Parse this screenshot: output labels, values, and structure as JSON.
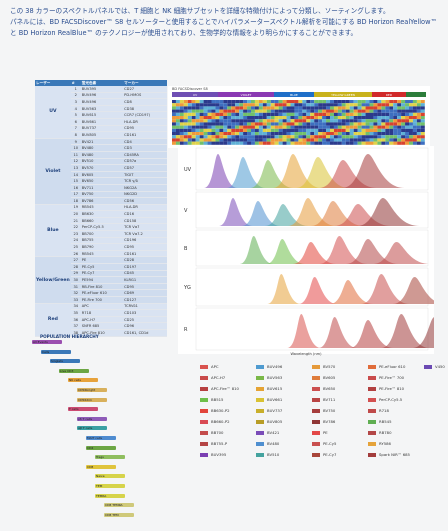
{
  "intro": {
    "line1": "この 38 カラーのスペクトルパネルでは、T 細胞と NK 細胞サブセットを詳細な特徴付けによって分類し、ソーティングします。",
    "line2": "パネルには、BD FACSDiscover™ S8 セルソーターと使用することでハイパラメータースペクトル解析を可能にする BD Horizon RealYellow™ と BD Horizon RealBlue™ のテクノロジーが使用されており、生物学的な情報をより明らかにすることができます。"
  },
  "table": {
    "headers": [
      "レーザー",
      "#",
      "蛍光色素",
      "マーカー"
    ],
    "groups": [
      {
        "laser": "UV",
        "color": "#d9e3f2",
        "rows": [
          [
            "1",
            "BUV395",
            "CD27"
          ],
          [
            "2",
            "BUV496",
            "PD-HMOS"
          ],
          [
            "3",
            "BUV496",
            "CD8"
          ],
          [
            "4",
            "BUV563",
            "CD38"
          ],
          [
            "5",
            "BUV615",
            "CCR7 (CD197)"
          ],
          [
            "6",
            "BUV661",
            "HLA-DR"
          ],
          [
            "7",
            "BUV737",
            "CD95"
          ],
          [
            "8",
            "BUV805",
            "CD161"
          ]
        ]
      },
      {
        "laser": "Violet",
        "color": "#cfdcee",
        "rows": [
          [
            "9",
            "BV421",
            "CD4"
          ],
          [
            "10",
            "BV480",
            "CD3"
          ],
          [
            "11",
            "BV480",
            "CD45RA"
          ],
          [
            "12",
            "BV510",
            "CD57a"
          ],
          [
            "13",
            "BV570",
            "CD57"
          ],
          [
            "14",
            "BV605",
            "TIGIT"
          ],
          [
            "15",
            "BV650",
            "TCR γ/δ"
          ],
          [
            "16",
            "BV711",
            "NKG2A"
          ],
          [
            "17",
            "BV750",
            "NKG2D"
          ],
          [
            "18",
            "BV786",
            "CD56"
          ]
        ]
      },
      {
        "laser": "Blue",
        "color": "#d9e3f2",
        "rows": [
          [
            "19",
            "RB545",
            "HLA-DR"
          ],
          [
            "20",
            "BB630",
            "CD16"
          ],
          [
            "21",
            "BB660",
            "CD158"
          ],
          [
            "22",
            "PerCP-Cy5.5",
            "TCR Vα7"
          ],
          [
            "23",
            "BB700",
            "TCR Vα7.2"
          ],
          [
            "24",
            "BB755",
            "CD196"
          ],
          [
            "25",
            "BB790",
            "CD95"
          ],
          [
            "26",
            "RB545",
            "CD161"
          ]
        ]
      },
      {
        "laser": "Yellow/Green",
        "color": "#cfdcee",
        "rows": [
          [
            "27",
            "PE",
            "CD28"
          ],
          [
            "28",
            "PE-Cy5",
            "CD197"
          ],
          [
            "29",
            "PE-Cy7",
            "CD45"
          ],
          [
            "30",
            "PE594",
            "KLRG1"
          ],
          [
            "31",
            "RB-Fire 810",
            "CD95"
          ],
          [
            "32",
            "PE-eFluor 610",
            "CD69"
          ],
          [
            "33",
            "PE-Fire 700",
            "CD127"
          ]
        ]
      },
      {
        "laser": "Red",
        "color": "#d9e3f2",
        "rows": [
          [
            "34",
            "APC",
            "TCRVδ1"
          ],
          [
            "35",
            "R718",
            "CD103"
          ],
          [
            "36",
            "APC-H7",
            "CD25"
          ],
          [
            "37",
            "SNFR 685",
            "CD96"
          ],
          [
            "38",
            "APC-Fire 810",
            "CD161, CD1d"
          ]
        ]
      }
    ]
  },
  "spectrum_header": "BD FACSDiscover S8",
  "spectrum_segments": [
    {
      "label": "UV",
      "color": "#6f4fb4"
    },
    {
      "label": "VIOLET",
      "color": "#8a39b3"
    },
    {
      "label": "BLUE",
      "color": "#1f6fc8"
    },
    {
      "label": "YELLOW GREEN",
      "color": "#c9b21c"
    },
    {
      "label": "RED",
      "color": "#d12a2a"
    },
    {
      "label": "",
      "color": "#2d7d3b"
    }
  ],
  "laser_rows": [
    "UV",
    "V",
    "B",
    "YG",
    "R"
  ],
  "wavelength_label": "Wavelength (nm)",
  "hierarchy_title": "POPULATION HIERARCHY",
  "hierarchy_nodes": [
    {
      "label": "All Events",
      "color": "#9b4fb0",
      "level": 0
    },
    {
      "label": "Cells",
      "color": "#3a78b8",
      "level": 1
    },
    {
      "label": "Singlets",
      "color": "#3a78b8",
      "level": 2
    },
    {
      "label": "Live CD3",
      "color": "#6ca644",
      "level": 3
    },
    {
      "label": "NK cells",
      "color": "#e7a23b",
      "level": 4
    },
    {
      "label": "CD56bright",
      "color": "#d8b05c",
      "level": 5
    },
    {
      "label": "CD56dim",
      "color": "#d8b05c",
      "level": 5
    },
    {
      "label": "T cells",
      "color": "#cc4b73",
      "level": 4
    },
    {
      "label": "γδ T cells",
      "color": "#8e5bb8",
      "level": 5
    },
    {
      "label": "αβ T cells",
      "color": "#3aa0a3",
      "level": 5
    },
    {
      "label": "MAIT cells",
      "color": "#4e8bd0",
      "level": 6
    },
    {
      "label": "CD4",
      "color": "#6ca644",
      "level": 6
    },
    {
      "label": "Tregs",
      "color": "#8fbe5f",
      "level": 7
    },
    {
      "label": "CD8",
      "color": "#e0c43c",
      "level": 6
    },
    {
      "label": "Naive",
      "color": "#d6d34a",
      "level": 7
    },
    {
      "label": "TEM",
      "color": "#d6d34a",
      "level": 7
    },
    {
      "label": "TEMRA",
      "color": "#d6d34a",
      "level": 7
    },
    {
      "label": "CD8 TEMRA",
      "color": "#cfc97a",
      "level": 8
    },
    {
      "label": "CD8 TEM",
      "color": "#cfc97a",
      "level": 8
    }
  ],
  "legend": [
    {
      "label": "APC",
      "color": "#d9534f"
    },
    {
      "label": "APC-H7",
      "color": "#c94a4a"
    },
    {
      "label": "APC-Fire™ 810",
      "color": "#b74040"
    },
    {
      "label": "BB515",
      "color": "#6fbf4a"
    },
    {
      "label": "BB630-P2",
      "color": "#e2453b"
    },
    {
      "label": "BB660-P2",
      "color": "#d94b54"
    },
    {
      "label": "BB700",
      "color": "#c44c4c"
    },
    {
      "label": "BB755-P",
      "color": "#b44545"
    },
    {
      "label": "BUV395",
      "color": "#7a3fb2"
    },
    {
      "label": "BUV496",
      "color": "#4f9bd0"
    },
    {
      "label": "BUV563",
      "color": "#7ab848"
    },
    {
      "label": "BUV615",
      "color": "#e5a334"
    },
    {
      "label": "BUV661",
      "color": "#d9c233"
    },
    {
      "label": "BUV737",
      "color": "#c9af2b"
    },
    {
      "label": "BUV805",
      "color": "#b89d26"
    },
    {
      "label": "BV421",
      "color": "#7a4cb8"
    },
    {
      "label": "BV480",
      "color": "#4f8fd0"
    },
    {
      "label": "BV510",
      "color": "#44a39f"
    },
    {
      "label": "BV570",
      "color": "#e59a3a"
    },
    {
      "label": "BV605",
      "color": "#df7c3b"
    },
    {
      "label": "BV650",
      "color": "#cc4f4f"
    },
    {
      "label": "BV711",
      "color": "#b94444"
    },
    {
      "label": "BV750",
      "color": "#a63d3d"
    },
    {
      "label": "BV786",
      "color": "#8f3535"
    },
    {
      "label": "PE",
      "color": "#e34848"
    },
    {
      "label": "PE-Cy5",
      "color": "#c9504f"
    },
    {
      "label": "PE-Cy7",
      "color": "#a8463b"
    },
    {
      "label": "PE-eFluor 610",
      "color": "#e06c3a"
    },
    {
      "label": "PE-Fire™ 700",
      "color": "#c94b4b"
    },
    {
      "label": "PE-Fire™ 810",
      "color": "#b24040"
    },
    {
      "label": "PerCP-Cy5.5",
      "color": "#d35050"
    },
    {
      "label": "R718",
      "color": "#c04a4a"
    },
    {
      "label": "RB545",
      "color": "#5fae52"
    },
    {
      "label": "RB780",
      "color": "#b34747"
    },
    {
      "label": "RY586",
      "color": "#e5a33a"
    },
    {
      "label": "Spark NIR™ 685",
      "color": "#a23c3c"
    },
    {
      "label": "V450",
      "color": "#6b4ab3"
    }
  ]
}
